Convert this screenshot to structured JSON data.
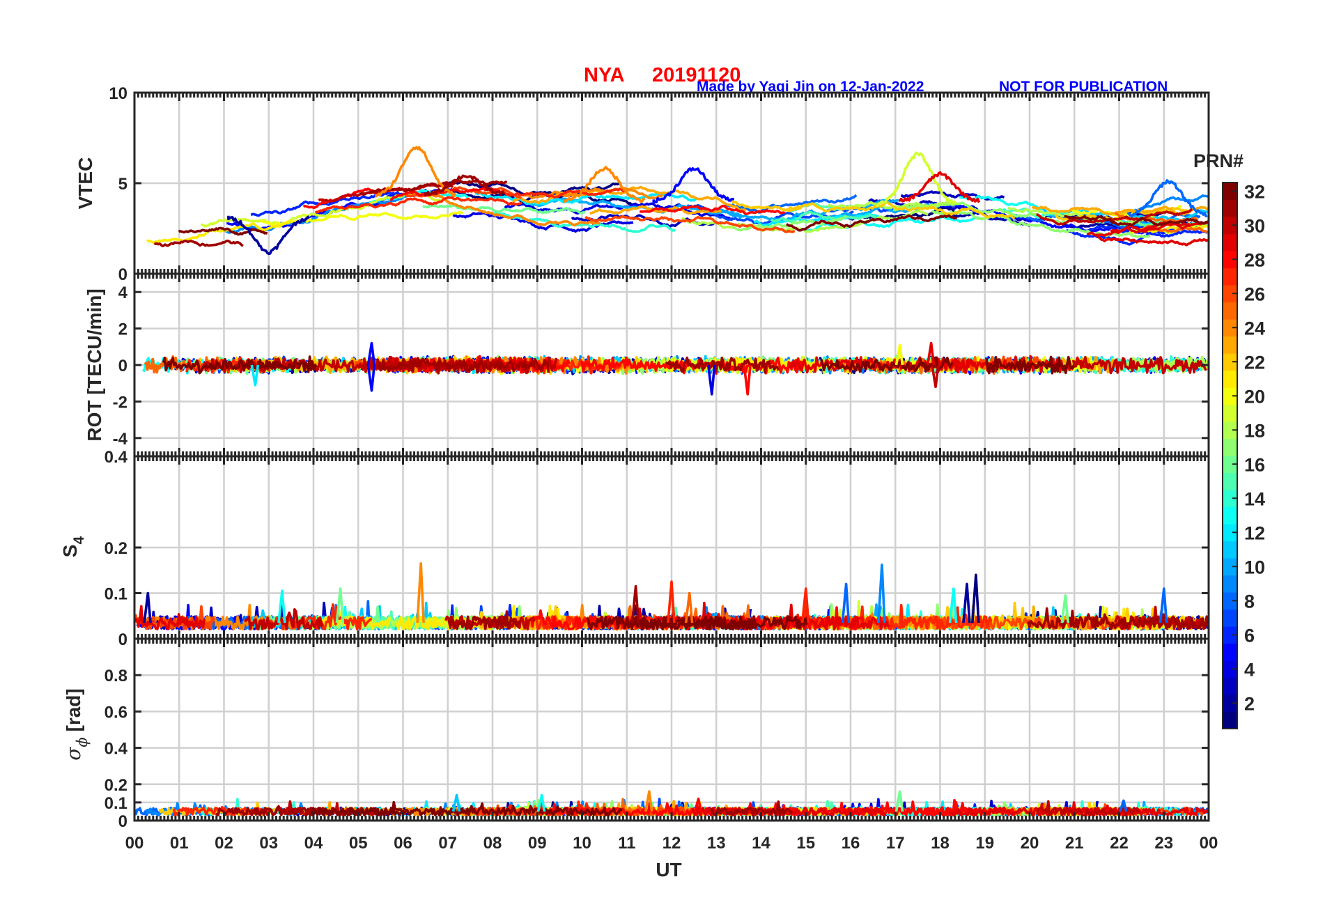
{
  "header": {
    "station": "NYA",
    "date": "20191120",
    "credit": "Made by Yaqi Jin on 12-Jan-2022",
    "notice": "NOT FOR PUBLICATION"
  },
  "colors": {
    "title_red": "#ff0000",
    "credit_blue": "#0000ff",
    "axis": "#262626",
    "grid": "#d0d0d0",
    "colormap": "jet"
  },
  "chart_data": [
    {
      "type": "line",
      "panel": "vtec",
      "ylabel": "VTEC",
      "ylim": [
        0,
        10
      ],
      "yticks": [
        0,
        5,
        10
      ],
      "xlim": [
        0,
        24
      ],
      "grid": true,
      "series_count": 32,
      "color_by": "PRN",
      "baseline": [
        [
          0,
          2.4
        ],
        [
          1,
          2.6
        ],
        [
          2,
          2.9
        ],
        [
          3,
          2.8
        ],
        [
          4,
          3.2
        ],
        [
          5,
          3.7
        ],
        [
          6,
          4.0
        ],
        [
          7,
          4.1
        ],
        [
          8,
          3.9
        ],
        [
          9,
          3.6
        ],
        [
          10,
          3.7
        ],
        [
          11,
          3.8
        ],
        [
          12,
          3.7
        ],
        [
          13,
          3.4
        ],
        [
          14,
          3.1
        ],
        [
          15,
          3.3
        ],
        [
          16,
          3.4
        ],
        [
          17,
          3.5
        ],
        [
          18,
          3.7
        ],
        [
          19,
          3.4
        ],
        [
          20,
          3.1
        ],
        [
          21,
          2.9
        ],
        [
          22,
          2.7
        ],
        [
          23,
          2.9
        ],
        [
          24,
          3.1
        ]
      ],
      "peaks": [
        {
          "prn": 24,
          "x": 6.3,
          "y": 7.0
        },
        {
          "prn": 19,
          "x": 17.5,
          "y": 6.6
        },
        {
          "prn": 5,
          "x": 12.5,
          "y": 5.8
        },
        {
          "prn": 31,
          "x": 7.4,
          "y": 5.4
        },
        {
          "prn": 29,
          "x": 18.0,
          "y": 5.5
        },
        {
          "prn": 24,
          "x": 10.5,
          "y": 5.8
        },
        {
          "prn": 8,
          "x": 23.1,
          "y": 5.1
        },
        {
          "prn": 2,
          "x": 3.0,
          "y": 1.2
        }
      ]
    },
    {
      "type": "line",
      "panel": "rot",
      "ylabel": "ROT [TECU/min]",
      "ylim": [
        -5,
        5
      ],
      "yticks": [
        -4,
        -2,
        0,
        2,
        4
      ],
      "xlim": [
        0,
        24
      ],
      "grid": true,
      "series_count": 32,
      "color_by": "PRN",
      "noise_amplitude": 0.35,
      "spikes": [
        {
          "prn": 5,
          "x": 5.3,
          "y": -1.4
        },
        {
          "prn": 5,
          "x": 5.3,
          "y": 1.2
        },
        {
          "prn": 4,
          "x": 12.9,
          "y": -1.6
        },
        {
          "prn": 28,
          "x": 13.7,
          "y": -1.6
        },
        {
          "prn": 29,
          "x": 17.8,
          "y": 1.2
        },
        {
          "prn": 20,
          "x": 17.1,
          "y": 1.1
        },
        {
          "prn": 30,
          "x": 17.9,
          "y": -1.2
        },
        {
          "prn": 12,
          "x": 2.7,
          "y": -1.1
        }
      ]
    },
    {
      "type": "line",
      "panel": "s4",
      "ylabel": "S",
      "ylabel_sub": "4",
      "ylim": [
        0,
        0.4
      ],
      "yticks": [
        0,
        0.1,
        0.2,
        0.4
      ],
      "ytick_labels": [
        "0",
        "0.1",
        "0.2",
        "0.4"
      ],
      "xlim": [
        0,
        24
      ],
      "grid": true,
      "series_count": 32,
      "color_by": "PRN",
      "baseline": 0.035,
      "spikes": [
        {
          "prn": 24,
          "x": 6.4,
          "y": 0.165
        },
        {
          "prn": 9,
          "x": 16.7,
          "y": 0.162
        },
        {
          "prn": 1,
          "x": 18.8,
          "y": 0.14
        },
        {
          "prn": 27,
          "x": 12.0,
          "y": 0.125
        },
        {
          "prn": 8,
          "x": 15.9,
          "y": 0.12
        },
        {
          "prn": 2,
          "x": 18.6,
          "y": 0.12
        },
        {
          "prn": 8,
          "x": 23.0,
          "y": 0.11
        },
        {
          "prn": 31,
          "x": 11.2,
          "y": 0.115
        },
        {
          "prn": 27,
          "x": 15.0,
          "y": 0.11
        },
        {
          "prn": 16,
          "x": 4.6,
          "y": 0.11
        },
        {
          "prn": 13,
          "x": 3.3,
          "y": 0.105
        },
        {
          "prn": 13,
          "x": 18.3,
          "y": 0.11
        },
        {
          "prn": 25,
          "x": 12.4,
          "y": 0.1
        },
        {
          "prn": 2,
          "x": 0.3,
          "y": 0.1
        },
        {
          "prn": 16,
          "x": 20.8,
          "y": 0.095
        }
      ]
    },
    {
      "type": "line",
      "panel": "sigma_phi",
      "ylabel": "σ",
      "ylabel_sub": "ϕ",
      "ylabel_unit": "[rad]",
      "ylim": [
        0,
        1
      ],
      "yticks": [
        0,
        0.1,
        0.2,
        0.4,
        0.6,
        0.8
      ],
      "ytick_labels": [
        "0",
        "0.1",
        "0.2",
        "0.4",
        "0.6",
        "0.8"
      ],
      "xlim": [
        0,
        24
      ],
      "grid": true,
      "series_count": 32,
      "color_by": "PRN",
      "baseline": 0.05,
      "spikes": [
        {
          "prn": 24,
          "x": 11.5,
          "y": 0.16
        },
        {
          "prn": 16,
          "x": 17.1,
          "y": 0.16
        },
        {
          "prn": 13,
          "x": 9.1,
          "y": 0.14
        },
        {
          "prn": 11,
          "x": 7.2,
          "y": 0.14
        },
        {
          "prn": 8,
          "x": 22.1,
          "y": 0.11
        },
        {
          "prn": 28,
          "x": 12.6,
          "y": 0.12
        }
      ]
    }
  ],
  "x_axis": {
    "label": "UT",
    "tick_labels": [
      "00",
      "01",
      "02",
      "03",
      "04",
      "05",
      "06",
      "07",
      "08",
      "09",
      "10",
      "11",
      "12",
      "13",
      "14",
      "15",
      "16",
      "17",
      "18",
      "19",
      "20",
      "21",
      "22",
      "23",
      "00"
    ]
  },
  "colorbar": {
    "title": "PRN#",
    "range": [
      1,
      32
    ],
    "tick_labels": [
      "2",
      "4",
      "6",
      "8",
      "10",
      "12",
      "14",
      "16",
      "18",
      "20",
      "22",
      "24",
      "26",
      "28",
      "30",
      "32"
    ]
  }
}
